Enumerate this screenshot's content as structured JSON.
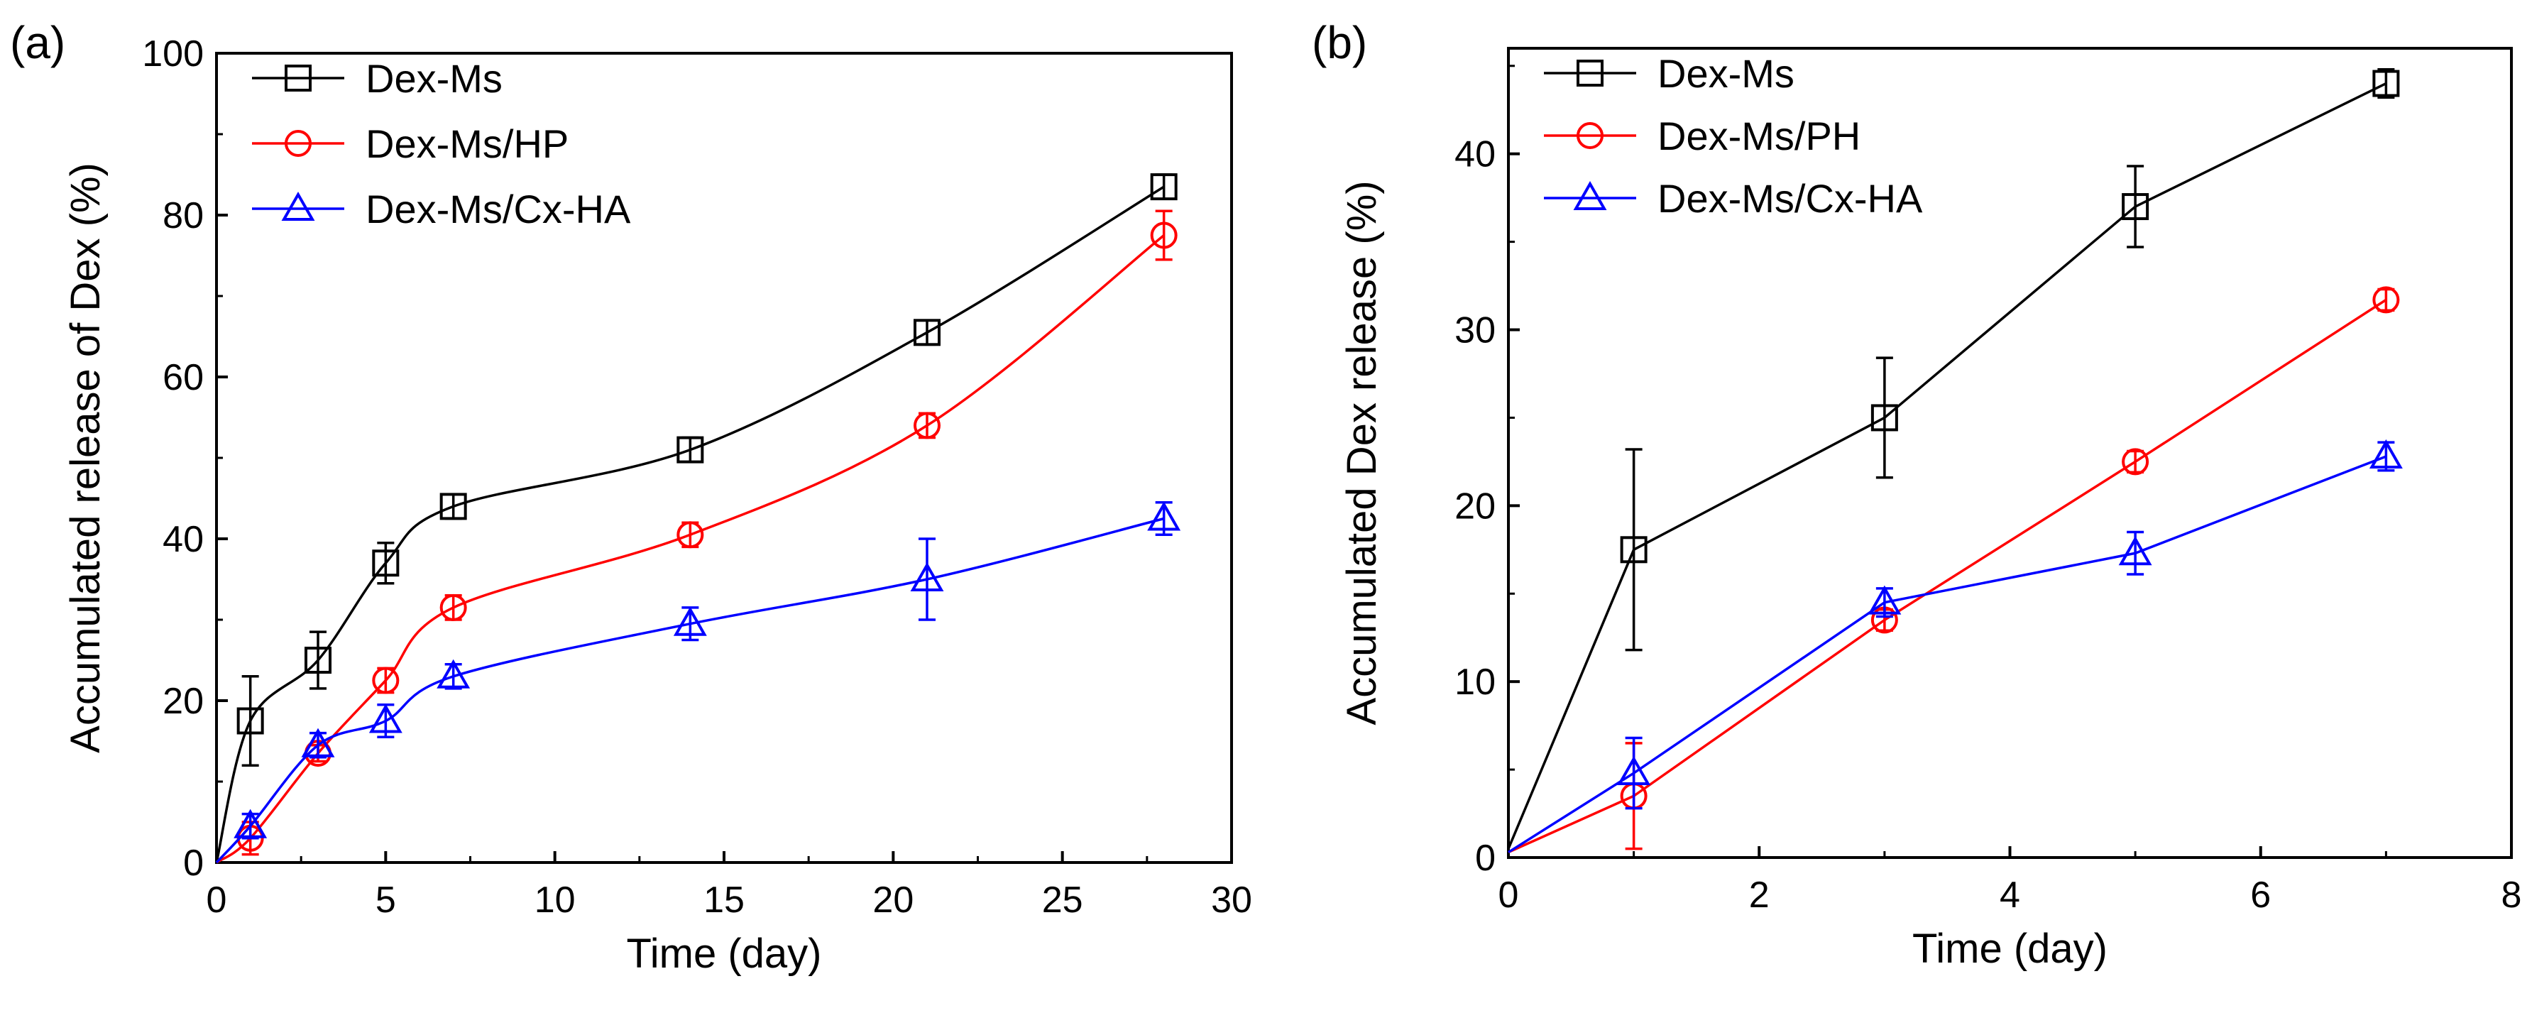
{
  "chart_data": [
    {
      "panel_label": "(a)",
      "type": "line",
      "xlabel": "Time (day)",
      "ylabel": "Accumulated release of Dex (%)",
      "xlim": [
        0,
        30
      ],
      "ylim": [
        0,
        100
      ],
      "xticks": [
        0,
        5,
        10,
        15,
        20,
        25,
        30
      ],
      "yticks": [
        0,
        20,
        40,
        60,
        80,
        100
      ],
      "legend_position": "top-left",
      "series": [
        {
          "name": "Dex-Ms",
          "color": "#000000",
          "marker": "square",
          "x": [
            0,
            1,
            3,
            5,
            7,
            14,
            21,
            28
          ],
          "y": [
            0,
            17.5,
            25,
            37,
            44,
            51,
            65.5,
            83.5
          ],
          "err": [
            0,
            5.5,
            3.5,
            2.5,
            1.5,
            1.5,
            1.5,
            1.5
          ]
        },
        {
          "name": "Dex-Ms/HP",
          "color": "#ff0000",
          "marker": "circle",
          "x": [
            0,
            1,
            3,
            5,
            7,
            14,
            21,
            28
          ],
          "y": [
            0,
            3,
            13.5,
            22.5,
            31.5,
            40.5,
            54,
            77.5
          ],
          "err": [
            0,
            2,
            1,
            1.5,
            1.5,
            1.5,
            1.5,
            3
          ]
        },
        {
          "name": "Dex-Ms/Cx-HA",
          "color": "#0000ff",
          "marker": "triangle",
          "x": [
            0,
            1,
            3,
            5,
            7,
            14,
            21,
            28
          ],
          "y": [
            0,
            4.5,
            14.5,
            17.5,
            23,
            29.5,
            35,
            42.5
          ],
          "err": [
            0,
            1.5,
            1.5,
            2,
            1.5,
            2,
            5,
            2
          ]
        }
      ]
    },
    {
      "panel_label": "(b)",
      "type": "line",
      "xlabel": "Time (day)",
      "ylabel": "Accumulated Dex release (%)",
      "xlim": [
        0,
        8
      ],
      "ylim": [
        0,
        46
      ],
      "xticks": [
        0,
        2,
        4,
        6,
        8
      ],
      "yticks": [
        0,
        10,
        20,
        30,
        40
      ],
      "legend_position": "top-left",
      "series": [
        {
          "name": "Dex-Ms",
          "color": "#000000",
          "marker": "square",
          "x": [
            0,
            1,
            3,
            5,
            7
          ],
          "y": [
            0.5,
            17.5,
            25,
            37,
            44
          ],
          "err": [
            0,
            5.7,
            3.4,
            2.3,
            0.8
          ]
        },
        {
          "name": "Dex-Ms/PH",
          "color": "#ff0000",
          "marker": "circle",
          "x": [
            0,
            1,
            3,
            5,
            7
          ],
          "y": [
            0.3,
            3.5,
            13.5,
            22.5,
            31.7
          ],
          "err": [
            0,
            3,
            0.6,
            0.6,
            0.6
          ]
        },
        {
          "name": "Dex-Ms/Cx-HA",
          "color": "#0000ff",
          "marker": "triangle",
          "x": [
            0,
            1,
            3,
            5,
            7
          ],
          "y": [
            0.3,
            4.8,
            14.5,
            17.3,
            22.8
          ],
          "err": [
            0,
            2,
            0.8,
            1.2,
            0.8
          ]
        }
      ]
    }
  ]
}
